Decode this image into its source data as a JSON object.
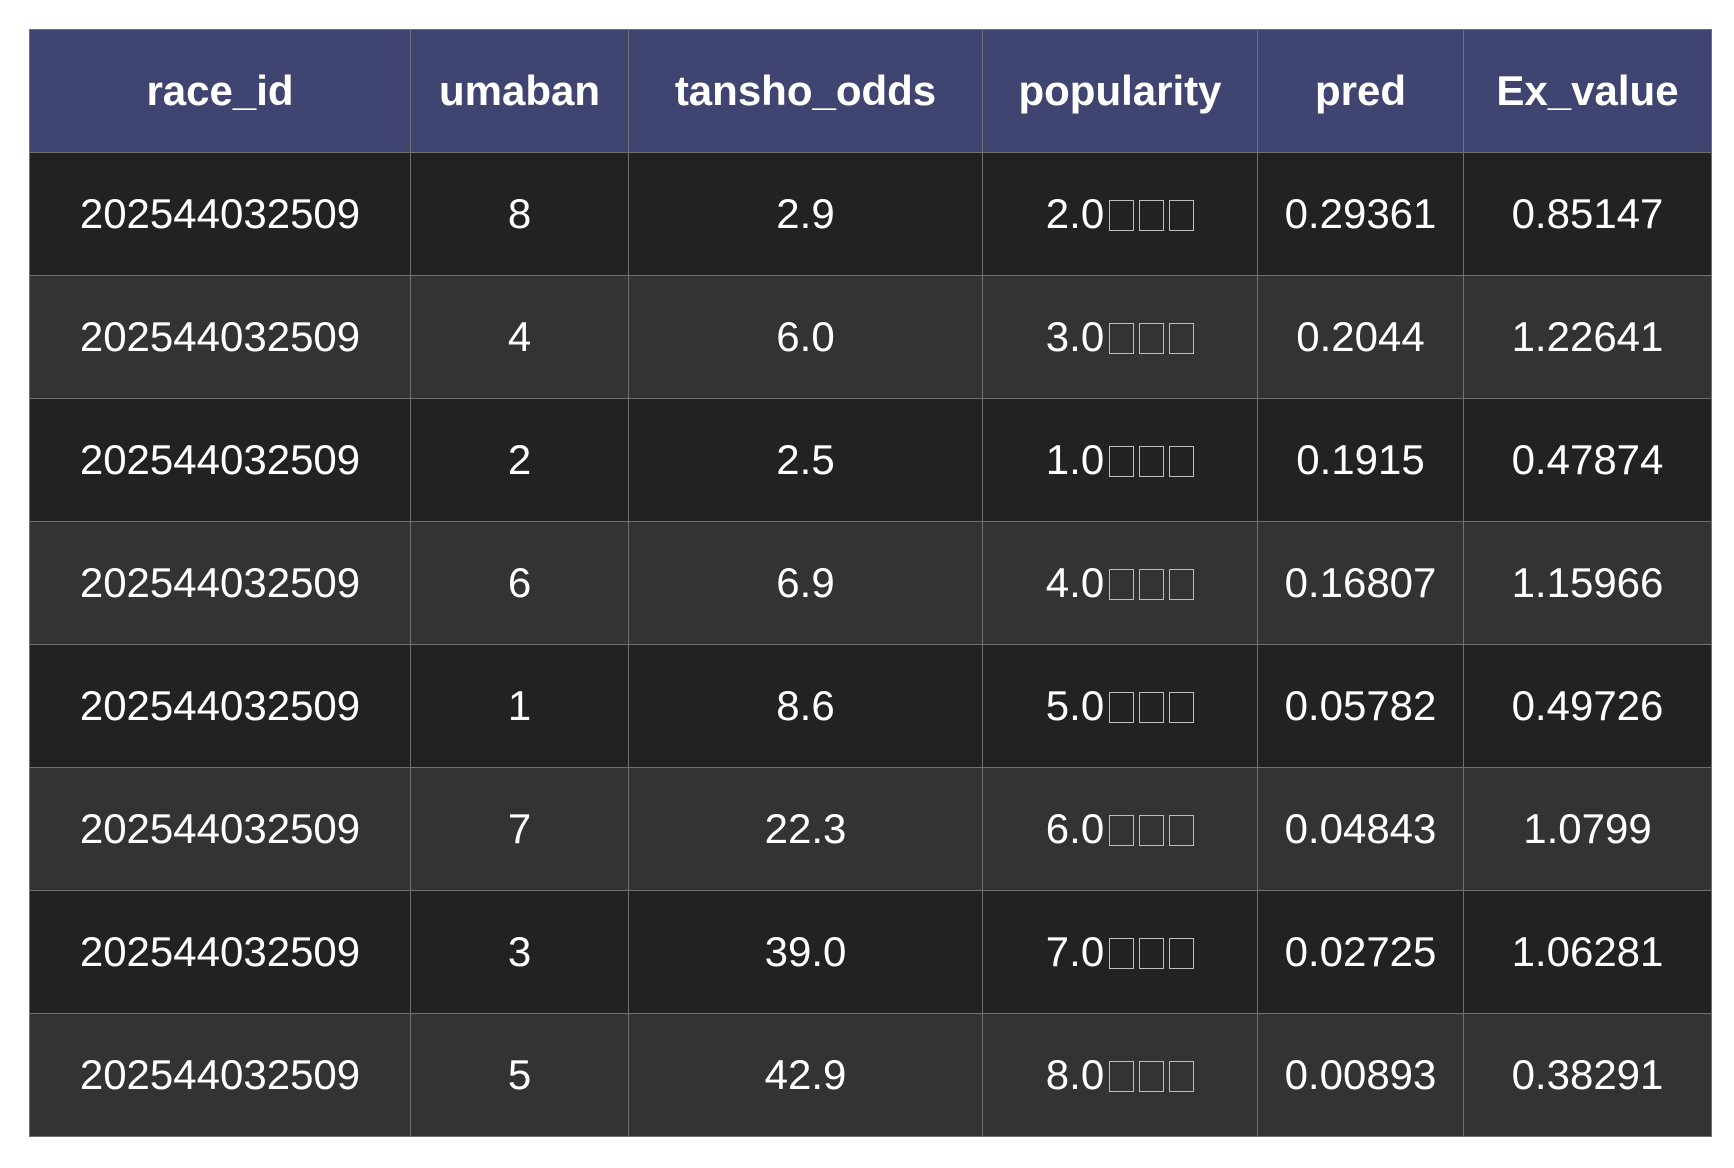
{
  "table": {
    "columns": [
      "race_id",
      "umaban",
      "tansho_odds",
      "popularity",
      "pred",
      "Ex_value"
    ],
    "rows": [
      [
        "202544032509",
        "8",
        "2.9",
        "2.0",
        "0.29361",
        "0.85147"
      ],
      [
        "202544032509",
        "4",
        "6.0",
        "3.0",
        "0.2044",
        "1.22641"
      ],
      [
        "202544032509",
        "2",
        "2.5",
        "1.0",
        "0.1915",
        "0.47874"
      ],
      [
        "202544032509",
        "6",
        "6.9",
        "4.0",
        "0.16807",
        "1.15966"
      ],
      [
        "202544032509",
        "1",
        "8.6",
        "5.0",
        "0.05782",
        "0.49726"
      ],
      [
        "202544032509",
        "7",
        "22.3",
        "6.0",
        "0.04843",
        "1.0799"
      ],
      [
        "202544032509",
        "3",
        "39.0",
        "7.0",
        "0.02725",
        "1.06281"
      ],
      [
        "202544032509",
        "5",
        "42.9",
        "8.0",
        "0.00893",
        "0.38291"
      ]
    ],
    "missing_glyph_count": 3
  },
  "colors": {
    "header_bg": "#3f4570",
    "row_dark": "#222222",
    "row_light": "#333333",
    "grid": "#707070",
    "text": "#ffffff"
  }
}
